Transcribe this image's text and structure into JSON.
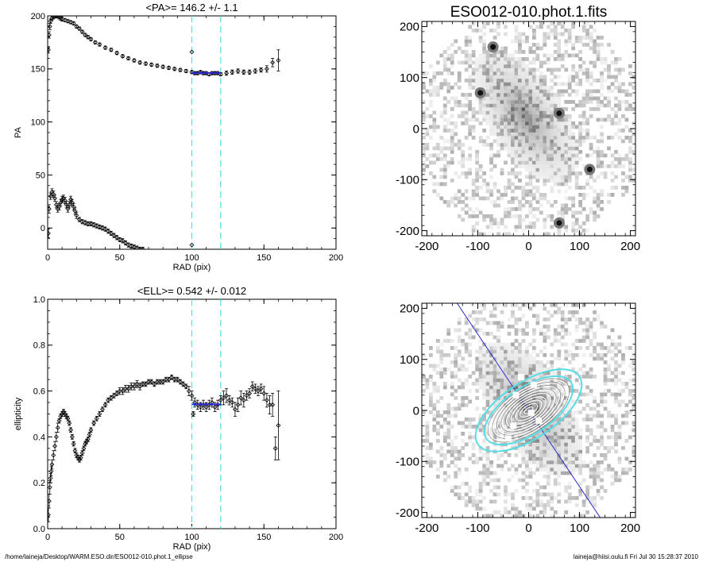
{
  "footer": {
    "path": "/home/laineja/Desktop/WARM.ESO.dir/ESO012-010.phot.1_ellipse",
    "user_date": "laineja@hiisi.oulu.fi  Fri Jul 30 15:28:37 2010"
  },
  "chart_data": [
    {
      "type": "scatter",
      "title": "<PA>= 146.2 +/-   1.1",
      "xlabel": "RAD (pix)",
      "ylabel": "PA",
      "xlim": [
        0,
        200
      ],
      "ylim": [
        -20,
        200
      ],
      "xticks": [
        0,
        50,
        100,
        150,
        200
      ],
      "yticks": [
        0,
        50,
        100,
        150,
        200
      ],
      "vlines": [
        100,
        120
      ],
      "fit": {
        "x": [
          100,
          120
        ],
        "y": [
          146.2,
          146.2
        ]
      },
      "series": [
        {
          "x": [
            0.5,
            1,
            1.5,
            2,
            3,
            4,
            5,
            6,
            7,
            8,
            9,
            10,
            12,
            14,
            16,
            18,
            20,
            22,
            24,
            26,
            28,
            30,
            33,
            36,
            40,
            44,
            48,
            52,
            56,
            60,
            64,
            68,
            72,
            76,
            80,
            84,
            88,
            92,
            96,
            100,
            102,
            104,
            106,
            108,
            110,
            112,
            114,
            116,
            118,
            120,
            124,
            128,
            132,
            136,
            140,
            144,
            148,
            152,
            156,
            160
          ],
          "y": [
            168,
            182,
            190,
            195,
            198,
            199,
            200,
            200,
            200,
            199,
            198,
            197,
            196,
            195,
            194,
            193,
            190,
            188,
            185,
            182,
            180,
            178,
            175,
            173,
            170,
            168,
            165,
            162,
            160,
            158,
            156,
            155,
            154,
            153,
            152,
            151,
            150,
            149,
            148,
            147,
            146,
            146,
            147,
            146,
            146,
            145,
            146,
            146,
            146,
            145,
            146,
            147,
            148,
            147,
            147,
            148,
            149,
            150,
            156,
            158
          ],
          "err": [
            3,
            3,
            3,
            2,
            2,
            2,
            2,
            2,
            2,
            2,
            2,
            2,
            1.5,
            1.5,
            1.5,
            1.5,
            1.5,
            1.5,
            1.5,
            1.5,
            1.5,
            1.5,
            1.5,
            1.5,
            1.5,
            1.5,
            1.5,
            1.5,
            1.5,
            1.5,
            1.5,
            1.5,
            1.5,
            1.5,
            1.5,
            1.5,
            1.5,
            1.5,
            1.5,
            1.5,
            1.5,
            1.5,
            1.5,
            1.5,
            1.5,
            1.5,
            1.5,
            1.5,
            1.5,
            1.5,
            2,
            2,
            2,
            2,
            2,
            2,
            2,
            3,
            4,
            10
          ]
        },
        {
          "x": [
            0.5,
            1,
            2,
            3,
            4,
            5,
            6,
            7,
            8,
            9,
            10,
            11,
            12,
            13,
            14,
            15,
            16,
            17,
            18,
            19,
            20,
            22,
            24,
            26,
            28,
            30,
            32,
            34,
            36,
            38,
            40,
            42,
            44,
            46,
            48,
            50,
            52,
            54,
            56,
            58,
            60,
            62,
            64,
            66
          ],
          "y": [
            -5,
            18,
            30,
            34,
            32,
            28,
            22,
            18,
            20,
            24,
            27,
            28,
            26,
            22,
            18,
            22,
            27,
            24,
            20,
            16,
            12,
            8,
            6,
            5,
            4,
            4,
            3,
            2,
            1,
            0,
            -1,
            -3,
            -5,
            -7,
            -9,
            -11,
            -12,
            -14,
            -16,
            -17,
            -18,
            -19,
            -20,
            -20
          ],
          "err": [
            4,
            4,
            3,
            3,
            3,
            3,
            3,
            3,
            3,
            3,
            3,
            3,
            3,
            3,
            3,
            3,
            3,
            3,
            3,
            3,
            3,
            2,
            2,
            2,
            2,
            2,
            2,
            2,
            2,
            2,
            2,
            2,
            2,
            2,
            2,
            2,
            2,
            2,
            2,
            2,
            2,
            2,
            2,
            2
          ]
        },
        {
          "x": [
            100,
            100
          ],
          "y": [
            166,
            -16
          ],
          "err": [
            0,
            0
          ]
        }
      ]
    },
    {
      "type": "scatter",
      "title": "<ELL>= 0.542 +/-  0.012",
      "xlabel": "RAD (pix)",
      "ylabel": "ellipticity",
      "xlim": [
        0,
        200
      ],
      "ylim": [
        0,
        1
      ],
      "xticks": [
        0,
        50,
        100,
        150,
        200
      ],
      "yticks": [
        0.0,
        0.2,
        0.4,
        0.6,
        0.8,
        1.0
      ],
      "vlines": [
        100,
        120
      ],
      "fit": {
        "x": [
          100,
          120
        ],
        "y": [
          0.542,
          0.542
        ]
      },
      "series": [
        {
          "x": [
            0.5,
            1,
            1.5,
            2,
            2.5,
            3,
            4,
            5,
            6,
            7,
            8,
            9,
            10,
            11,
            12,
            13,
            14,
            15,
            16,
            17,
            18,
            19,
            20,
            21,
            22,
            23,
            24,
            25,
            26,
            27,
            28,
            29,
            30,
            32,
            34,
            36,
            38,
            40,
            42,
            44,
            46,
            48,
            50,
            52,
            54,
            56,
            58,
            60,
            62,
            64,
            66,
            68,
            70,
            72,
            74,
            76,
            78,
            80,
            82,
            84,
            86,
            88,
            90,
            92,
            94,
            96,
            98,
            100,
            101,
            102,
            104,
            106,
            108,
            110,
            112,
            114,
            116,
            118,
            120,
            122,
            124,
            126,
            128,
            130,
            132,
            134,
            136,
            138,
            140,
            142,
            144,
            146,
            148,
            150,
            152,
            154,
            156,
            158,
            160
          ],
          "y": [
            0.06,
            0.12,
            0.18,
            0.22,
            0.25,
            0.28,
            0.32,
            0.36,
            0.4,
            0.44,
            0.47,
            0.49,
            0.5,
            0.51,
            0.5,
            0.49,
            0.48,
            0.46,
            0.43,
            0.4,
            0.37,
            0.34,
            0.32,
            0.31,
            0.3,
            0.31,
            0.33,
            0.35,
            0.37,
            0.38,
            0.39,
            0.41,
            0.43,
            0.46,
            0.48,
            0.5,
            0.52,
            0.54,
            0.56,
            0.57,
            0.58,
            0.59,
            0.6,
            0.6,
            0.61,
            0.61,
            0.62,
            0.62,
            0.63,
            0.62,
            0.63,
            0.63,
            0.64,
            0.64,
            0.63,
            0.64,
            0.64,
            0.64,
            0.65,
            0.65,
            0.66,
            0.65,
            0.65,
            0.64,
            0.63,
            0.62,
            0.6,
            0.58,
            0.5,
            0.55,
            0.54,
            0.53,
            0.54,
            0.53,
            0.54,
            0.55,
            0.53,
            0.54,
            0.56,
            0.57,
            0.58,
            0.56,
            0.55,
            0.52,
            0.54,
            0.57,
            0.56,
            0.58,
            0.59,
            0.62,
            0.61,
            0.6,
            0.61,
            0.59,
            0.56,
            0.54,
            0.54,
            0.35,
            0.45
          ],
          "err": [
            0.03,
            0.03,
            0.03,
            0.02,
            0.02,
            0.02,
            0.02,
            0.02,
            0.02,
            0.02,
            0.01,
            0.01,
            0.01,
            0.01,
            0.01,
            0.01,
            0.01,
            0.01,
            0.01,
            0.01,
            0.01,
            0.01,
            0.01,
            0.01,
            0.01,
            0.01,
            0.01,
            0.01,
            0.01,
            0.01,
            0.01,
            0.01,
            0.01,
            0.01,
            0.01,
            0.01,
            0.01,
            0.01,
            0.01,
            0.01,
            0.01,
            0.01,
            0.015,
            0.015,
            0.015,
            0.015,
            0.015,
            0.015,
            0.015,
            0.015,
            0.01,
            0.01,
            0.01,
            0.01,
            0.01,
            0.01,
            0.01,
            0.01,
            0.01,
            0.01,
            0.01,
            0.01,
            0.01,
            0.01,
            0.01,
            0.01,
            0.02,
            0.02,
            0.01,
            0.02,
            0.02,
            0.02,
            0.02,
            0.02,
            0.02,
            0.02,
            0.02,
            0.02,
            0.02,
            0.03,
            0.03,
            0.02,
            0.02,
            0.03,
            0.03,
            0.03,
            0.03,
            0.02,
            0.02,
            0.02,
            0.02,
            0.02,
            0.02,
            0.03,
            0.03,
            0.04,
            0.05,
            0.05,
            0.15
          ]
        }
      ]
    },
    {
      "type": "heatmap",
      "title": "ESO012-010.phot.1.fits",
      "xlim": [
        -210,
        210
      ],
      "ylim": [
        -210,
        210
      ],
      "xticks": [
        -200,
        -100,
        0,
        100,
        200
      ],
      "yticks": [
        -200,
        -100,
        0,
        100,
        200
      ],
      "galaxy_center": [
        -10,
        20
      ],
      "galaxy_pa": 146.2,
      "stars": [
        [
          60,
          30
        ],
        [
          60,
          -185
        ],
        [
          -95,
          70
        ],
        [
          -70,
          160
        ],
        [
          120,
          -80
        ]
      ]
    },
    {
      "type": "heatmap",
      "title": "",
      "xlim": [
        -210,
        210
      ],
      "ylim": [
        -210,
        210
      ],
      "xticks": [
        -200,
        -100,
        0,
        100,
        200
      ],
      "yticks": [
        -200,
        -100,
        0,
        100,
        200
      ],
      "major_axis_pa": 146.2,
      "ellipticity": 0.542,
      "inner_ellipse_axes": [
        10,
        20,
        30,
        40,
        50,
        60,
        70,
        80,
        90
      ],
      "outer_ellipse_axes": [
        100,
        120
      ]
    }
  ]
}
